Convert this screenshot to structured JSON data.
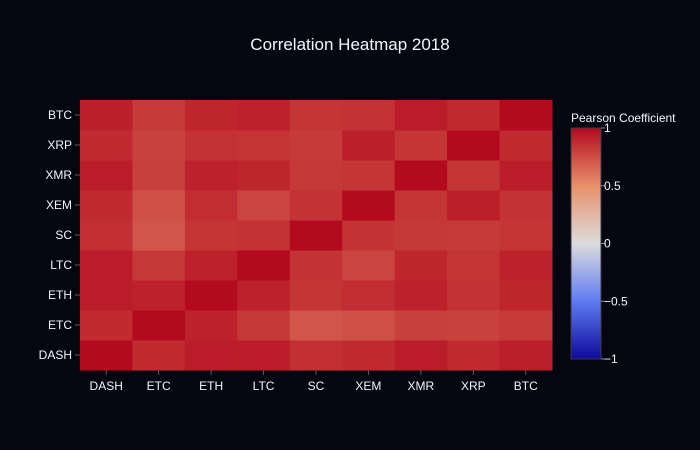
{
  "chart_data": {
    "type": "heatmap",
    "title": "Correlation Heatmap 2018",
    "x_categories": [
      "DASH",
      "ETC",
      "ETH",
      "LTC",
      "SC",
      "XEM",
      "XMR",
      "XRP",
      "BTC"
    ],
    "y_categories": [
      "DASH",
      "ETC",
      "ETH",
      "LTC",
      "SC",
      "XEM",
      "XMR",
      "XRP",
      "BTC"
    ],
    "z": [
      [
        1.0,
        0.88,
        0.93,
        0.93,
        0.86,
        0.88,
        0.93,
        0.88,
        0.92
      ],
      [
        0.88,
        1.0,
        0.91,
        0.83,
        0.72,
        0.74,
        0.8,
        0.79,
        0.82
      ],
      [
        0.93,
        0.91,
        1.0,
        0.91,
        0.84,
        0.87,
        0.91,
        0.85,
        0.9
      ],
      [
        0.93,
        0.83,
        0.91,
        1.0,
        0.85,
        0.78,
        0.9,
        0.84,
        0.91
      ],
      [
        0.86,
        0.72,
        0.84,
        0.85,
        1.0,
        0.85,
        0.83,
        0.82,
        0.84
      ],
      [
        0.88,
        0.74,
        0.87,
        0.78,
        0.85,
        1.0,
        0.84,
        0.92,
        0.85
      ],
      [
        0.93,
        0.8,
        0.91,
        0.9,
        0.83,
        0.84,
        1.0,
        0.84,
        0.93
      ],
      [
        0.88,
        0.79,
        0.85,
        0.84,
        0.82,
        0.92,
        0.84,
        1.0,
        0.88
      ],
      [
        0.92,
        0.82,
        0.9,
        0.91,
        0.84,
        0.85,
        0.93,
        0.88,
        1.0
      ]
    ],
    "zmin": -1,
    "zmax": 1,
    "colorscale": "coolwarm",
    "colorbar": {
      "title": "Pearson Coefficient",
      "ticks": [
        1,
        0.5,
        0,
        -0.5,
        -1
      ],
      "tick_labels": [
        "1",
        "0.5",
        "0",
        "−0.5",
        "−1"
      ]
    },
    "colors": {
      "background": "#050610",
      "text": "#f2f5fa",
      "low": "#0d0a9b",
      "mid": "#dcdcdc",
      "high": "#b30a1e"
    }
  }
}
